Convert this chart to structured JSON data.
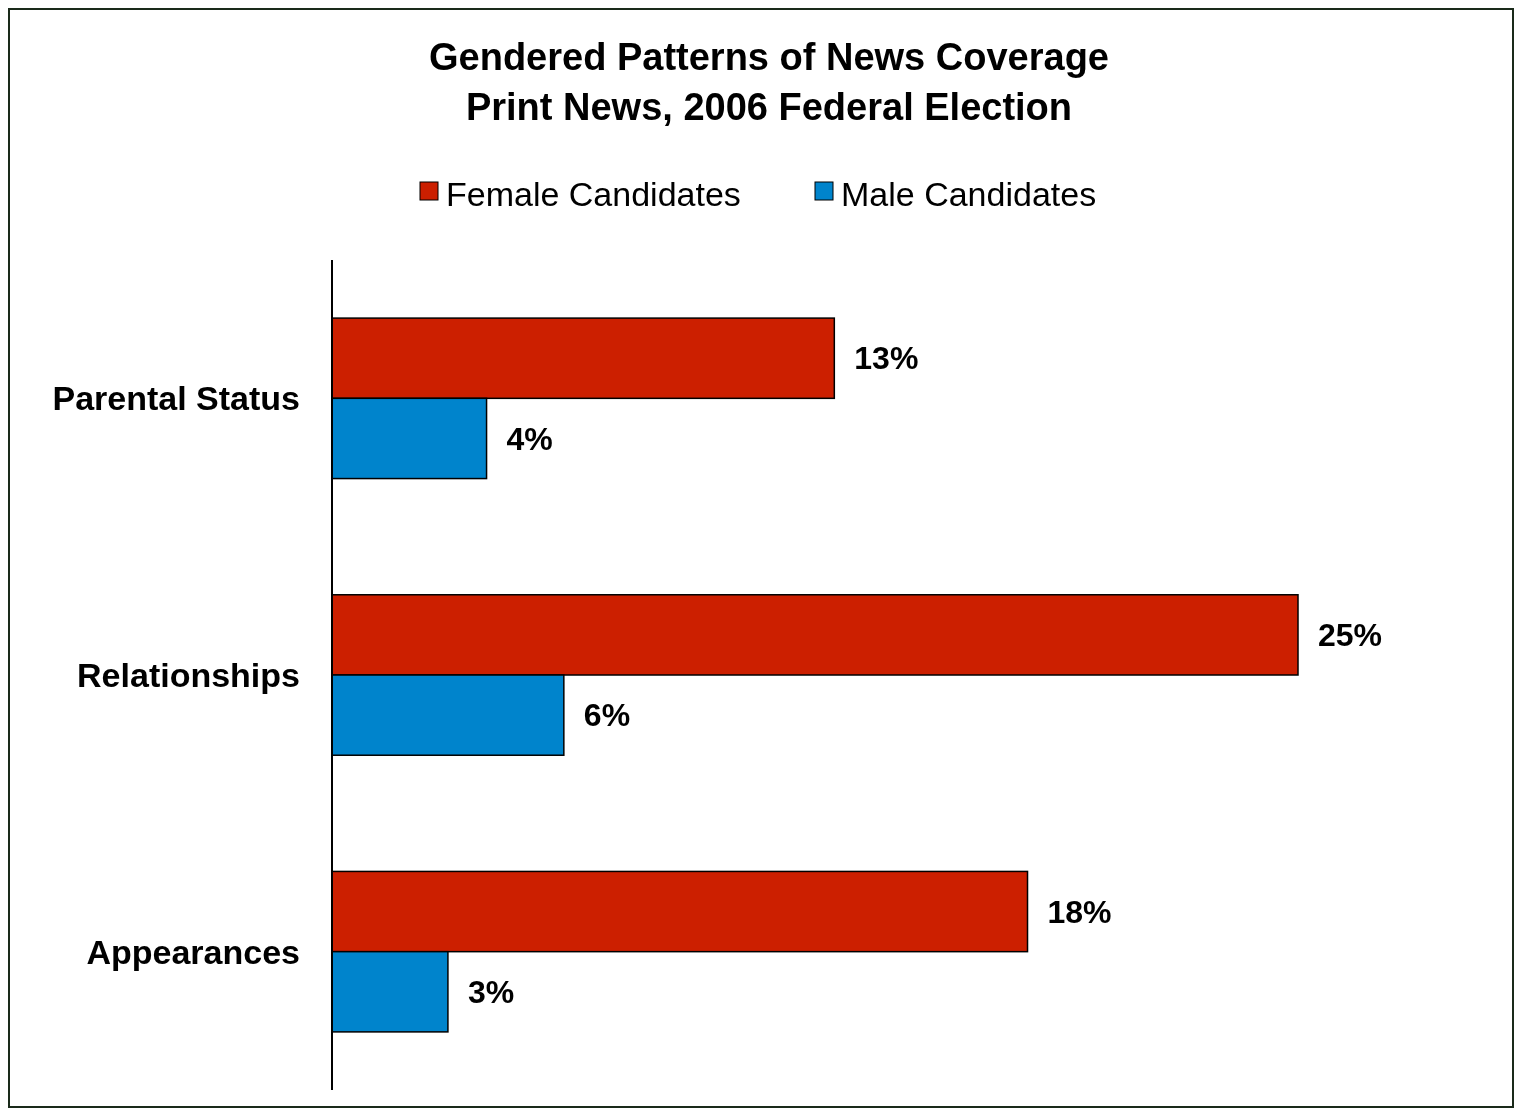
{
  "chart_data": {
    "type": "bar",
    "orientation": "horizontal",
    "title": "Gendered Patterns of News Coverage\nPrint News, 2006 Federal Election",
    "categories": [
      "Parental Status",
      "Relationships",
      "Appearances"
    ],
    "series": [
      {
        "name": "Female Candidates",
        "color": "#cc1f00",
        "values": [
          13,
          25,
          18
        ],
        "value_labels": [
          "13%",
          "25%",
          "18%"
        ]
      },
      {
        "name": "Male Candidates",
        "color": "#0084cc",
        "values": [
          4,
          6,
          3
        ],
        "value_labels": [
          "4%",
          "6%",
          "3%"
        ]
      }
    ],
    "tick_labels": "y",
    "legend": "top",
    "grid": false
  }
}
